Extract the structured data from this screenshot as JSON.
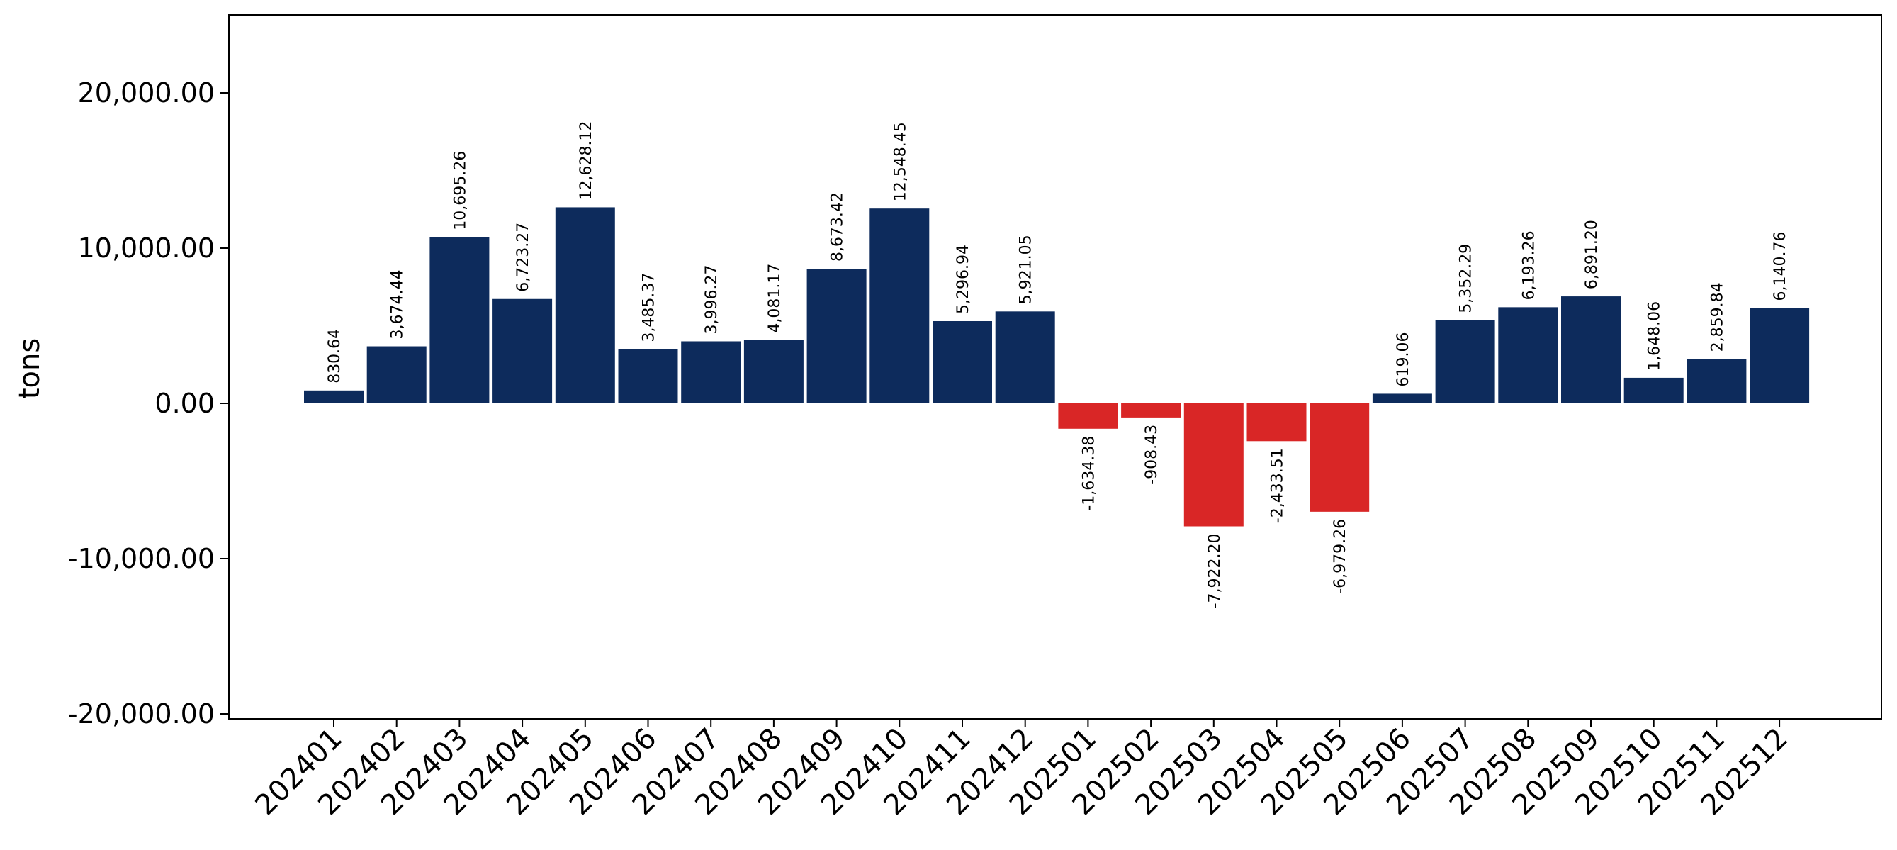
{
  "chart_data": {
    "type": "bar",
    "title": "",
    "xlabel": "",
    "ylabel": "tons",
    "ylim": [
      -20400,
      25000
    ],
    "yticks": [
      -20000,
      -10000,
      0,
      10000,
      20000
    ],
    "ytick_labels": [
      "-20,000.00",
      "-10,000.00",
      "0.00",
      "10,000.00",
      "20,000.00"
    ],
    "grid": false,
    "legend": "none",
    "colors": {
      "positive": "#0d2b5c",
      "negative": "#d92626"
    },
    "categories": [
      "202401",
      "202402",
      "202403",
      "202404",
      "202405",
      "202406",
      "202407",
      "202408",
      "202409",
      "202410",
      "202411",
      "202412",
      "202501",
      "202502",
      "202503",
      "202504",
      "202505",
      "202506",
      "202507",
      "202508",
      "202509",
      "202510",
      "202511",
      "202512"
    ],
    "values": [
      830.64,
      3674.44,
      10695.26,
      6723.27,
      12628.12,
      3485.37,
      3996.27,
      4081.17,
      8673.42,
      12548.45,
      5296.94,
      5921.05,
      -1634.38,
      -908.43,
      -7922.2,
      -2433.51,
      -6979.26,
      619.06,
      5352.29,
      6193.26,
      6891.2,
      1648.06,
      2859.84,
      6140.76
    ],
    "value_labels": [
      "830.64",
      "3,674.44",
      "10,695.26",
      "6,723.27",
      "12,628.12",
      "3,485.37",
      "3,996.27",
      "4,081.17",
      "8,673.42",
      "12,548.45",
      "5,296.94",
      "5,921.05",
      "-1,634.38",
      "-908.43",
      "-7,922.20",
      "-2,433.51",
      "-6,979.26",
      "619.06",
      "5,352.29",
      "6,193.26",
      "6,891.20",
      "1,648.06",
      "2,859.84",
      "6,140.76"
    ]
  }
}
